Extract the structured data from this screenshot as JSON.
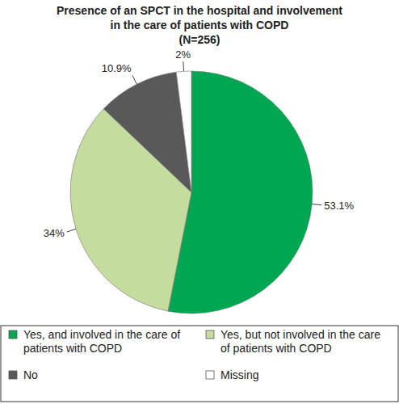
{
  "chart_data": {
    "type": "pie",
    "title": "Presence of an SPCT in the hospital and involvement in the care of patients with COPD",
    "subtitle": "(N=256)",
    "categories": [
      "Yes, and involved in the care of patients with COPD",
      "Yes, but not involved in the care of patients with COPD",
      "No",
      "Missing"
    ],
    "values": [
      53.1,
      34,
      10.9,
      2
    ],
    "value_labels": [
      "53.1%",
      "34%",
      "10.9%",
      "2%"
    ],
    "colors": [
      "#00a651",
      "#c5dc9f",
      "#595959",
      "#ffffff"
    ],
    "data_labels": true,
    "legend": "bottom"
  }
}
